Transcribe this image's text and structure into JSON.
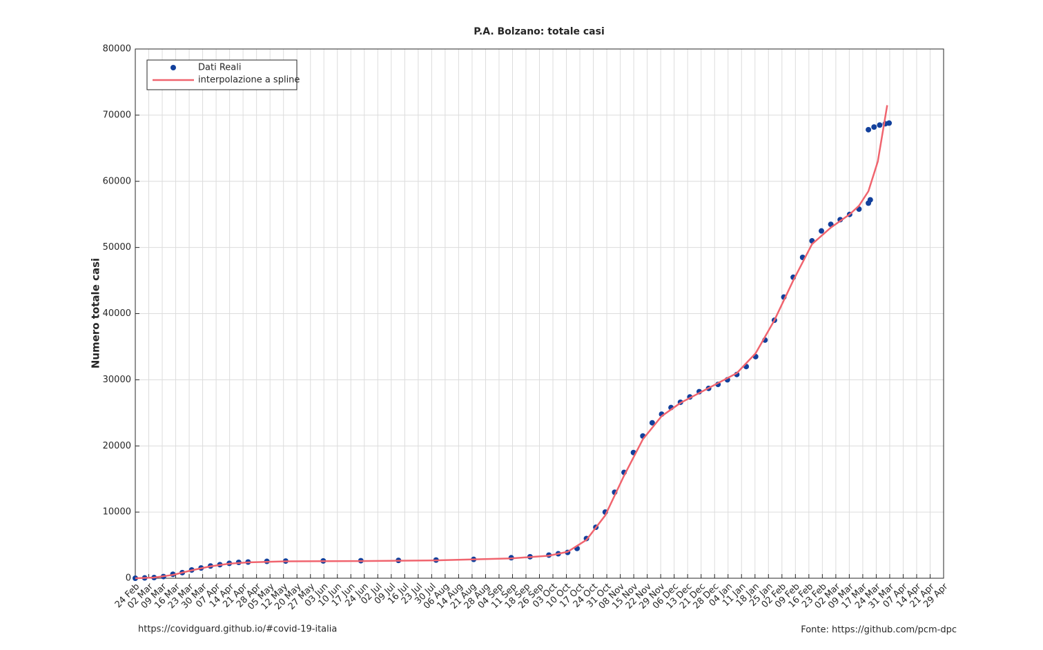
{
  "chart_data": {
    "type": "scatter",
    "title": "P.A. Bolzano: totale casi",
    "ylabel": "Numero totale casi",
    "source_left": "https://covidguard.github.io/#covid-19-italia",
    "source_right": "Fonte: https://github.com/pcm-dpc",
    "xlim": [
      0,
      430
    ],
    "xticks": [
      {
        "value": 0,
        "label": "24 Feb"
      },
      {
        "value": 7.17,
        "label": "02 Mar"
      },
      {
        "value": 14.33,
        "label": "09 Mar"
      },
      {
        "value": 21.5,
        "label": "16 Mar"
      },
      {
        "value": 28.67,
        "label": "23 Mar"
      },
      {
        "value": 35.83,
        "label": "30 Mar"
      },
      {
        "value": 43,
        "label": "07 Apr"
      },
      {
        "value": 50.17,
        "label": "14 Apr"
      },
      {
        "value": 57.33,
        "label": "21 Apr"
      },
      {
        "value": 64.5,
        "label": "28 Apr"
      },
      {
        "value": 71.67,
        "label": "05 May"
      },
      {
        "value": 78.83,
        "label": "12 May"
      },
      {
        "value": 86,
        "label": "20 May"
      },
      {
        "value": 93.17,
        "label": "27 May"
      },
      {
        "value": 100.33,
        "label": "03 Jun"
      },
      {
        "value": 107.5,
        "label": "10 Jun"
      },
      {
        "value": 114.67,
        "label": "17 Jun"
      },
      {
        "value": 121.83,
        "label": "24 Jun"
      },
      {
        "value": 129,
        "label": "02 Jul"
      },
      {
        "value": 136.17,
        "label": "09 Jul"
      },
      {
        "value": 143.33,
        "label": "16 Jul"
      },
      {
        "value": 150.5,
        "label": "23 Jul"
      },
      {
        "value": 157.67,
        "label": "30 Jul"
      },
      {
        "value": 164.83,
        "label": "06 Aug"
      },
      {
        "value": 172,
        "label": "14 Aug"
      },
      {
        "value": 179.17,
        "label": "21 Aug"
      },
      {
        "value": 186.33,
        "label": "28 Aug"
      },
      {
        "value": 193.5,
        "label": "04 Sep"
      },
      {
        "value": 200.67,
        "label": "11 Sep"
      },
      {
        "value": 207.83,
        "label": "18 Sep"
      },
      {
        "value": 215,
        "label": "26 Sep"
      },
      {
        "value": 222.17,
        "label": "03 Oct"
      },
      {
        "value": 229.33,
        "label": "10 Oct"
      },
      {
        "value": 236.5,
        "label": "17 Oct"
      },
      {
        "value": 243.67,
        "label": "24 Oct"
      },
      {
        "value": 250.83,
        "label": "31 Oct"
      },
      {
        "value": 258,
        "label": "08 Nov"
      },
      {
        "value": 265.17,
        "label": "15 Nov"
      },
      {
        "value": 272.33,
        "label": "22 Nov"
      },
      {
        "value": 279.5,
        "label": "29 Nov"
      },
      {
        "value": 286.67,
        "label": "06 Dec"
      },
      {
        "value": 293.83,
        "label": "13 Dec"
      },
      {
        "value": 301,
        "label": "21 Dec"
      },
      {
        "value": 308.17,
        "label": "28 Dec"
      },
      {
        "value": 315.33,
        "label": "04 Jan"
      },
      {
        "value": 322.5,
        "label": "11 Jan"
      },
      {
        "value": 329.67,
        "label": "18 Jan"
      },
      {
        "value": 336.83,
        "label": "25 Jan"
      },
      {
        "value": 344,
        "label": "02 Feb"
      },
      {
        "value": 351.17,
        "label": "09 Feb"
      },
      {
        "value": 358.33,
        "label": "16 Feb"
      },
      {
        "value": 365.5,
        "label": "23 Feb"
      },
      {
        "value": 372.67,
        "label": "02 Mar"
      },
      {
        "value": 379.83,
        "label": "09 Mar"
      },
      {
        "value": 387,
        "label": "17 Mar"
      },
      {
        "value": 394.17,
        "label": "24 Mar"
      },
      {
        "value": 401.33,
        "label": "31 Mar"
      },
      {
        "value": 408.5,
        "label": "07 Apr"
      },
      {
        "value": 415.67,
        "label": "14 Apr"
      },
      {
        "value": 422.83,
        "label": "21 Apr"
      },
      {
        "value": 430,
        "label": "29 Apr"
      }
    ],
    "ylim": [
      0,
      80000
    ],
    "yticks": [
      0,
      10000,
      20000,
      30000,
      40000,
      50000,
      60000,
      70000,
      80000
    ],
    "grid": true,
    "legend": "upper left",
    "series": [
      {
        "name": "Dati Reali",
        "mode": "markers",
        "color": "#12409c",
        "x": [
          0,
          5,
          10,
          15,
          20,
          25,
          30,
          35,
          40,
          45,
          50,
          55,
          60,
          70,
          80,
          100,
          120,
          140,
          160,
          180,
          200,
          210,
          220,
          225,
          230,
          235,
          240,
          245,
          250,
          255,
          260,
          265,
          270,
          275,
          280,
          285,
          290,
          295,
          300,
          305,
          310,
          315,
          320,
          325,
          330,
          335,
          340,
          345,
          350,
          355,
          360,
          365,
          370,
          375,
          380,
          385,
          390,
          391,
          390,
          393,
          396,
          399,
          401
        ],
        "values": [
          0,
          50,
          100,
          250,
          600,
          850,
          1250,
          1550,
          1850,
          2050,
          2250,
          2400,
          2450,
          2550,
          2600,
          2620,
          2650,
          2700,
          2750,
          2850,
          3100,
          3250,
          3500,
          3700,
          3900,
          4500,
          6000,
          7700,
          10000,
          13000,
          16000,
          19000,
          21500,
          23500,
          24800,
          25800,
          26600,
          27400,
          28200,
          28700,
          29300,
          30000,
          30800,
          32000,
          33500,
          36000,
          39000,
          42500,
          45500,
          48500,
          51000,
          52500,
          53500,
          54200,
          55000,
          55800,
          56700,
          57200,
          67800,
          68200,
          68500,
          68700,
          68800
        ]
      },
      {
        "name": "interpolazione a spline",
        "mode": "line",
        "color": "#f0646e",
        "x": [
          0,
          10,
          20,
          30,
          40,
          50,
          60,
          80,
          120,
          160,
          200,
          220,
          230,
          240,
          250,
          260,
          270,
          280,
          290,
          300,
          310,
          320,
          330,
          340,
          350,
          360,
          370,
          380,
          385,
          390,
          395,
          400
        ],
        "values": [
          0,
          100,
          500,
          1200,
          1800,
          2200,
          2400,
          2550,
          2600,
          2700,
          3000,
          3400,
          4000,
          5800,
          9500,
          15500,
          21000,
          24500,
          26500,
          28000,
          29500,
          31000,
          34000,
          39000,
          45000,
          50500,
          53000,
          55000,
          56300,
          58500,
          63000,
          71500
        ]
      }
    ]
  }
}
